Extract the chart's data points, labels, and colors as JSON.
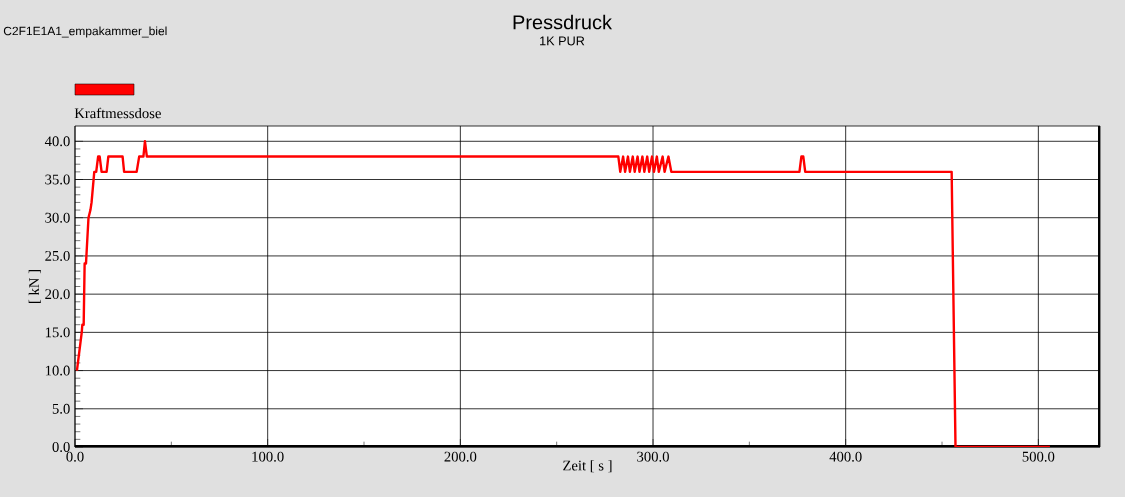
{
  "chart_data": {
    "type": "line",
    "title": "Pressdruck",
    "subtitle": "1K PUR",
    "xlabel": "Zeit [ s ]",
    "ylabel": "[ kN ]",
    "annotations": [
      "C2F1E1A1_empakammer_biel"
    ],
    "xlim": [
      0,
      532
    ],
    "ylim": [
      0,
      42
    ],
    "xticks": [
      {
        "value": 0,
        "label": "0.0"
      },
      {
        "value": 100,
        "label": "100.0"
      },
      {
        "value": 200,
        "label": "200.0"
      },
      {
        "value": 300,
        "label": "300.0"
      },
      {
        "value": 400,
        "label": "400.0"
      },
      {
        "value": 500,
        "label": "500.0"
      }
    ],
    "yticks": [
      {
        "value": 0,
        "label": "0.0"
      },
      {
        "value": 5,
        "label": "5.0"
      },
      {
        "value": 10,
        "label": "10.0"
      },
      {
        "value": 15,
        "label": "15.0"
      },
      {
        "value": 20,
        "label": "20.0"
      },
      {
        "value": 25,
        "label": "25.0"
      },
      {
        "value": 30,
        "label": "30.0"
      },
      {
        "value": 35,
        "label": "35.0"
      },
      {
        "value": 40,
        "label": "40.0"
      }
    ],
    "grid": true,
    "legend": "top left",
    "marker": "none",
    "line_style": "solid",
    "series": [
      {
        "name": "Kraftmessdose",
        "color": "#ff0000",
        "x": [
          1,
          3.5,
          3.8,
          4.5,
          5,
          5.7,
          7,
          8,
          8.6,
          10,
          11,
          12,
          12.8,
          13.8,
          16.4,
          17.3,
          24.7,
          25.5,
          32,
          33.3,
          35.5,
          36.3,
          37.3,
          282,
          283,
          284.5,
          285.5,
          287,
          288,
          289.5,
          290.5,
          292,
          293,
          294.5,
          295.5,
          297,
          298,
          299.5,
          300.5,
          302,
          303,
          305,
          306,
          308,
          309.5,
          376,
          377,
          378,
          379,
          455,
          457,
          506
        ],
        "values": [
          10,
          15,
          16,
          16,
          24,
          24,
          30,
          31,
          32,
          36,
          36,
          38,
          38,
          36,
          36,
          38,
          38,
          36,
          36,
          38,
          38,
          40,
          38,
          38,
          36,
          38,
          36,
          38,
          36,
          38,
          36,
          38,
          36,
          38,
          36,
          38,
          36,
          38,
          36,
          38,
          36,
          38,
          36,
          38,
          36,
          36,
          38,
          38,
          36,
          36,
          0,
          0
        ]
      }
    ]
  }
}
